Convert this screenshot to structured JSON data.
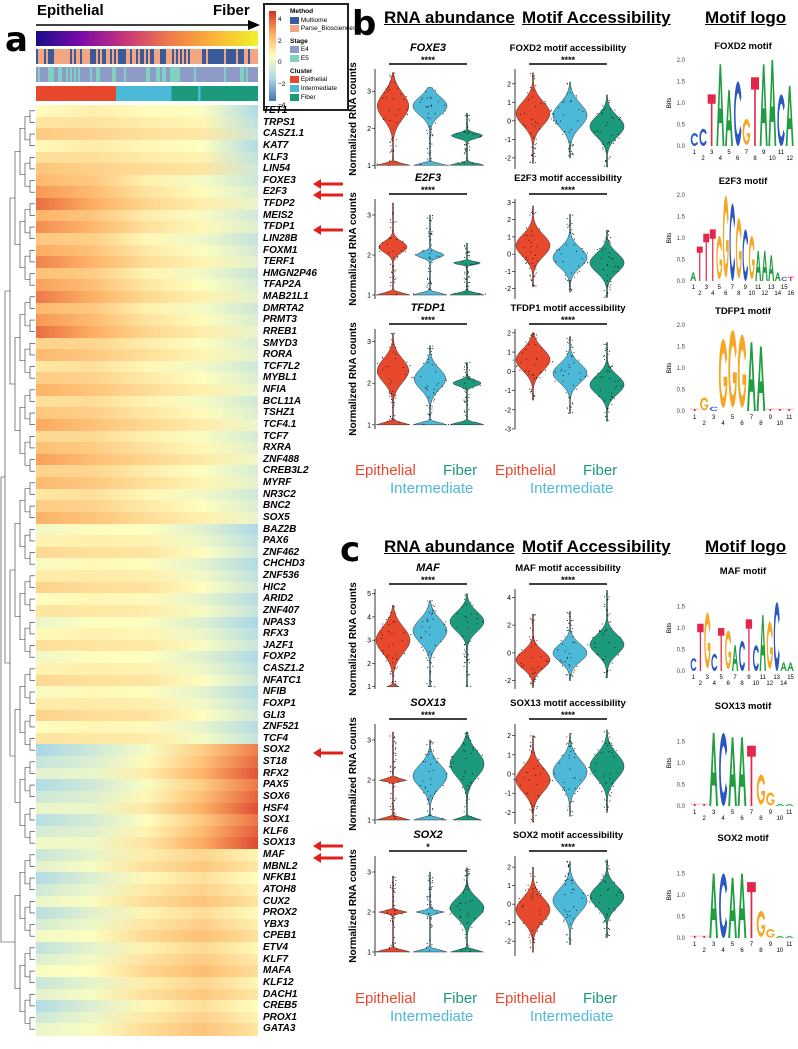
{
  "panel_a": {
    "label": "a",
    "arrow_start": "Epithelial",
    "arrow_end": "Fiber",
    "legend": {
      "scale_ticks": [
        "4",
        "2",
        "0",
        "−2",
        "−4"
      ],
      "method_title": "Method",
      "method": [
        "Multiome",
        "Parse_Biosciences"
      ],
      "stage_title": "Stage",
      "stage": [
        "E4",
        "E5"
      ],
      "cluster_title": "Cluster",
      "cluster": [
        "Epithelial",
        "Intermediate",
        "Fiber"
      ]
    },
    "arrows_on": [
      "FOXE3",
      "E2F3",
      "TFDP1",
      "SOX2",
      "SOX13",
      "MAF"
    ]
  },
  "panel_b": {
    "label": "b",
    "headers": [
      "RNA abundance",
      "Motif Accessibility",
      "Motif logo"
    ]
  },
  "panel_c": {
    "label": "c",
    "headers": [
      "RNA abundance",
      "Motif Accessibility",
      "Motif logo"
    ]
  },
  "categories": [
    "Epithelial",
    "Intermediate",
    "Fiber"
  ],
  "colors": {
    "Epithelial": "#E8492D",
    "Intermediate": "#4DB9D9",
    "Fiber": "#1B9A7C",
    "A": "#1E9E3E",
    "C": "#2A55C2",
    "G": "#F5A623",
    "T": "#E3264A",
    "arrow": "#E0201B"
  },
  "chart_data": {
    "type": "heatmap",
    "heatmap": {
      "x": "pseudotime (Epithelial → Fiber)",
      "color_range": [
        -4,
        4
      ],
      "genes": [
        "TET1",
        "TRPS1",
        "CASZ1.1",
        "KAT7",
        "KLF3",
        "LIN54",
        "FOXE3",
        "E2F3",
        "TFDP2",
        "MEIS2",
        "TFDP1",
        "LIN28B",
        "FOXM1",
        "TERF1",
        "HMGN2P46",
        "TFAP2A",
        "MAB21L1",
        "DMRTA2",
        "PRMT3",
        "RREB1",
        "SMYD3",
        "RORA",
        "TCF7L2",
        "MYBL1",
        "NFIA",
        "BCL11A",
        "TSHZ1",
        "TCF4.1",
        "TCF7",
        "RXRA",
        "ZNF488",
        "CREB3L2",
        "MYRF",
        "NR3C2",
        "BNC2",
        "SOX5",
        "BAZ2B",
        "PAX6",
        "ZNF462",
        "CHCHD3",
        "ZNF536",
        "HIC2",
        "ARID2",
        "ZNF407",
        "NPAS3",
        "RFX3",
        "JAZF1",
        "FOXP2",
        "CASZ1.2",
        "NFATC1",
        "NFIB",
        "FOXP1",
        "GLI3",
        "ZNF521",
        "TCF4",
        "SOX2",
        "ST18",
        "RFX2",
        "PAX5",
        "SOX6",
        "HSF4",
        "SOX1",
        "KLF6",
        "SOX13",
        "MAF",
        "MBNL2",
        "NFKB1",
        "ATOH8",
        "CUX2",
        "PROX2",
        "YBX3",
        "CPEB1",
        "ETV4",
        "KLF7",
        "MAFA",
        "KLF12",
        "DACH1",
        "CREB5",
        "PROX1",
        "GATA3"
      ],
      "profile_groups": [
        {
          "rows": [
            0,
            6
          ],
          "profile": [
            0.8,
            0.8,
            0.5,
            0.3,
            -1.5
          ]
        },
        {
          "rows": [
            6,
            20
          ],
          "profile": [
            2.2,
            1.6,
            0.6,
            0,
            -1
          ]
        },
        {
          "rows": [
            20,
            36
          ],
          "profile": [
            1.4,
            1.2,
            0.6,
            0.1,
            -0.8
          ]
        },
        {
          "rows": [
            36,
            55
          ],
          "profile": [
            0.3,
            0.4,
            0.3,
            -0.4,
            -1.6
          ]
        },
        {
          "rows": [
            55,
            64
          ],
          "profile": [
            -1.2,
            -0.8,
            0.2,
            1.6,
            3.2
          ]
        },
        {
          "rows": [
            64,
            80
          ],
          "profile": [
            -1,
            -0.4,
            0.6,
            1.2,
            0.4
          ]
        }
      ]
    },
    "violin_panels": [
      {
        "id": "b-rna-1",
        "title": "FOXE3",
        "italic": true,
        "sig": "****",
        "ylabel": "Normalized RNA counts",
        "ylim": [
          0.9,
          3.6
        ],
        "yticks": [
          1,
          2,
          3
        ],
        "groups": [
          {
            "min": 1,
            "max": 3.5,
            "mode": 2.6,
            "spread": 0.5,
            "base": 0.9
          },
          {
            "min": 1,
            "max": 3.1,
            "mode": 2.6,
            "spread": 0.35,
            "base": 0.8
          },
          {
            "min": 1,
            "max": 2.4,
            "mode": 1.8,
            "spread": 0.1,
            "base": 0.9
          }
        ]
      },
      {
        "id": "b-acc-1",
        "title": "FOXD2 motif accessibility",
        "italic": false,
        "sig": "****",
        "ylim": [
          -2.6,
          2.8
        ],
        "yticks": [
          -2,
          -1,
          0,
          1,
          2
        ],
        "groups": [
          {
            "min": -2.3,
            "max": 2.6,
            "mode": 0.4,
            "spread": 0.9,
            "base": 0
          },
          {
            "min": -2.0,
            "max": 2.1,
            "mode": 0.3,
            "spread": 0.9,
            "base": 0
          },
          {
            "min": -2.5,
            "max": 1.4,
            "mode": -0.3,
            "spread": 0.8,
            "base": 0
          }
        ]
      },
      {
        "id": "b-rna-2",
        "title": "E2F3",
        "italic": true,
        "sig": "****",
        "ylabel": "Normalized RNA counts",
        "ylim": [
          0.9,
          3.4
        ],
        "yticks": [
          1,
          2,
          3
        ],
        "groups": [
          {
            "min": 1,
            "max": 3.3,
            "mode": 2.2,
            "spread": 0.2,
            "base": 1
          },
          {
            "min": 1,
            "max": 3,
            "mode": 2,
            "spread": 0.1,
            "base": 1
          },
          {
            "min": 1,
            "max": 2.3,
            "mode": 1.8,
            "spread": 0.05,
            "base": 1
          }
        ]
      },
      {
        "id": "b-acc-2",
        "title": "E2F3 motif accessibility",
        "italic": false,
        "sig": "****",
        "ylim": [
          -2.6,
          3.2
        ],
        "yticks": [
          -2,
          -1,
          0,
          1,
          2,
          3
        ],
        "groups": [
          {
            "min": -1.9,
            "max": 2.8,
            "mode": 0.5,
            "spread": 0.9,
            "base": 0
          },
          {
            "min": -2.2,
            "max": 2.3,
            "mode": -0.2,
            "spread": 0.8,
            "base": 0
          },
          {
            "min": -2.5,
            "max": 1.4,
            "mode": -0.5,
            "spread": 0.8,
            "base": 0
          }
        ]
      },
      {
        "id": "b-rna-3",
        "title": "TFDP1",
        "italic": true,
        "sig": "****",
        "ylabel": "Normalized RNA counts",
        "ylim": [
          0.9,
          3.3
        ],
        "yticks": [
          1,
          2,
          3
        ],
        "groups": [
          {
            "min": 1,
            "max": 3.2,
            "mode": 2.3,
            "spread": 0.4,
            "base": 0.9
          },
          {
            "min": 1,
            "max": 2.9,
            "mode": 2.1,
            "spread": 0.35,
            "base": 0.9
          },
          {
            "min": 1,
            "max": 2.5,
            "mode": 2,
            "spread": 0.1,
            "base": 1
          }
        ]
      },
      {
        "id": "b-acc-3",
        "title": "TFDP1 motif accessibility",
        "italic": false,
        "sig": "****",
        "ylim": [
          -3,
          2.2
        ],
        "yticks": [
          -3,
          -2,
          -1,
          0,
          1,
          2
        ],
        "groups": [
          {
            "min": -1.5,
            "max": 2,
            "mode": 0.6,
            "spread": 0.8,
            "base": 0
          },
          {
            "min": -2.2,
            "max": 1.8,
            "mode": -0.1,
            "spread": 0.7,
            "base": 0
          },
          {
            "min": -2.6,
            "max": 1.5,
            "mode": -0.7,
            "spread": 0.7,
            "base": 0
          }
        ]
      },
      {
        "id": "c-rna-1",
        "title": "MAF",
        "italic": true,
        "sig": "****",
        "ylabel": "Normalized RNA counts",
        "ylim": [
          0.9,
          5.2
        ],
        "yticks": [
          1,
          2,
          3,
          4,
          5
        ],
        "groups": [
          {
            "min": 1,
            "max": 4.5,
            "mode": 3,
            "spread": 0.8,
            "base": 0.3
          },
          {
            "min": 1,
            "max": 4.7,
            "mode": 3.4,
            "spread": 0.7,
            "base": 0.1
          },
          {
            "min": 1,
            "max": 5,
            "mode": 3.8,
            "spread": 0.6,
            "base": 0.05
          }
        ]
      },
      {
        "id": "c-acc-1",
        "title": "MAF motif accessibility",
        "italic": false,
        "sig": "****",
        "ylim": [
          -2.6,
          4.6
        ],
        "yticks": [
          -2,
          0,
          2,
          4
        ],
        "groups": [
          {
            "min": -2.5,
            "max": 2.8,
            "mode": -0.5,
            "spread": 0.9,
            "base": 0
          },
          {
            "min": -2,
            "max": 3,
            "mode": 0,
            "spread": 0.9,
            "base": 0
          },
          {
            "min": -1.8,
            "max": 4.5,
            "mode": 0.6,
            "spread": 1,
            "base": 0
          }
        ]
      },
      {
        "id": "c-rna-2",
        "title": "SOX13",
        "italic": true,
        "sig": "****",
        "ylabel": "Normalized RNA counts",
        "ylim": [
          0.9,
          3.4
        ],
        "yticks": [
          1,
          2,
          3
        ],
        "groups": [
          {
            "min": 1,
            "max": 3.2,
            "mode": 2,
            "spread": 0.05,
            "base": 1
          },
          {
            "min": 1,
            "max": 3,
            "mode": 2.1,
            "spread": 0.4,
            "base": 0.8
          },
          {
            "min": 1,
            "max": 3.2,
            "mode": 2.4,
            "spread": 0.45,
            "base": 0.7
          }
        ]
      },
      {
        "id": "c-acc-2",
        "title": "SOX13 motif accessibility",
        "italic": false,
        "sig": "****",
        "ylim": [
          -2.6,
          2.6
        ],
        "yticks": [
          -2,
          -1,
          0,
          1,
          2
        ],
        "groups": [
          {
            "min": -2.5,
            "max": 2,
            "mode": -0.3,
            "spread": 0.9,
            "base": 0
          },
          {
            "min": -2.2,
            "max": 2.1,
            "mode": 0.1,
            "spread": 0.9,
            "base": 0
          },
          {
            "min": -2,
            "max": 2.3,
            "mode": 0.4,
            "spread": 0.9,
            "base": 0
          }
        ]
      },
      {
        "id": "c-rna-3",
        "title": "SOX2",
        "italic": true,
        "sig": "*",
        "ylabel": "Normalized RNA counts",
        "ylim": [
          0.9,
          3.4
        ],
        "yticks": [
          1,
          2,
          3
        ],
        "groups": [
          {
            "min": 1,
            "max": 2.9,
            "mode": 2,
            "spread": 0.05,
            "base": 1
          },
          {
            "min": 1,
            "max": 3,
            "mode": 2,
            "spread": 0.05,
            "base": 1
          },
          {
            "min": 1,
            "max": 3.1,
            "mode": 2.1,
            "spread": 0.35,
            "base": 0.8
          }
        ]
      },
      {
        "id": "c-acc-3",
        "title": "SOX2 motif accessibility",
        "italic": false,
        "sig": "****",
        "ylim": [
          -2.8,
          2.6
        ],
        "yticks": [
          -2,
          -1,
          0,
          1,
          2
        ],
        "groups": [
          {
            "min": -2.6,
            "max": 2,
            "mode": -0.3,
            "spread": 0.9,
            "base": 0
          },
          {
            "min": -2.2,
            "max": 2.3,
            "mode": 0.2,
            "spread": 0.9,
            "base": 0
          },
          {
            "min": -1.8,
            "max": 2.4,
            "mode": 0.4,
            "spread": 0.8,
            "base": 0
          }
        ]
      }
    ],
    "logos": [
      {
        "id": "b-logo-1",
        "title": "FOXD2 motif",
        "ylabel": "Bits",
        "ylim": [
          0,
          2
        ],
        "yticks": [
          "0.0",
          "0.5",
          "1.0",
          "1.5",
          "2.0"
        ],
        "sequence": "CCTAACGTAACA",
        "bits": [
          0.3,
          0.4,
          1.2,
          1.9,
          1.3,
          1.5,
          0.6,
          1.6,
          1.9,
          2.0,
          1.2,
          1.4
        ]
      },
      {
        "id": "b-logo-2",
        "title": "E2F3 motif",
        "ylabel": "Bits",
        "ylim": [
          0,
          2
        ],
        "yticks": [
          "0.0",
          "0.5",
          "1.0",
          "1.5",
          "2.0"
        ],
        "sequence": "ATTTGGCGCGAAAACT",
        "bits": [
          0.2,
          0.8,
          1.1,
          1.2,
          1.0,
          1.9,
          1.8,
          1.4,
          1.2,
          1.0,
          0.7,
          0.7,
          0.6,
          0.2,
          0.1,
          0.1
        ]
      },
      {
        "id": "b-logo-3",
        "title": "TDFP1 motif",
        "ylabel": "Bits",
        "ylim": [
          0,
          2
        ],
        "yticks": [
          "0.0",
          "0.5",
          "1.0",
          "1.5",
          "2.0"
        ],
        "sequence": "TGCGGGAATTT",
        "bits": [
          0.05,
          0.3,
          0.1,
          1.6,
          1.8,
          1.7,
          1.6,
          1.5,
          0.05,
          0.05,
          0.05
        ]
      },
      {
        "id": "c-logo-1",
        "title": "MAF motif",
        "ylabel": "Bits",
        "ylim": [
          0,
          2
        ],
        "yticks": [
          "0.0",
          "0.5",
          "1.0",
          "1.5"
        ],
        "sequence": "CTGCTGACTCAGCAA",
        "bits": [
          0.3,
          1.1,
          1.3,
          0.4,
          1.0,
          0.9,
          0.6,
          0.7,
          1.2,
          0.6,
          1.3,
          1.1,
          1.6,
          0.2,
          0.2
        ]
      },
      {
        "id": "c-logo-2",
        "title": "SOX13 motif",
        "ylabel": "Bits",
        "ylim": [
          0,
          2
        ],
        "yticks": [
          "0.0",
          "0.5",
          "1.0",
          "1.5"
        ],
        "sequence": "TTACAATGGAA",
        "bits": [
          0.05,
          0.05,
          1.7,
          1.7,
          1.6,
          1.6,
          1.4,
          0.7,
          0.3,
          0.05,
          0.05
        ]
      },
      {
        "id": "c-logo-3",
        "title": "SOX2 motif",
        "ylabel": "Bits",
        "ylim": [
          0,
          2
        ],
        "yticks": [
          "0.0",
          "0.5",
          "1.0",
          "1.5"
        ],
        "sequence": "TTACAATGGAA",
        "bits": [
          0.05,
          0.05,
          1.5,
          1.5,
          1.4,
          1.5,
          1.3,
          0.6,
          0.2,
          0.05,
          0.05
        ]
      }
    ]
  }
}
